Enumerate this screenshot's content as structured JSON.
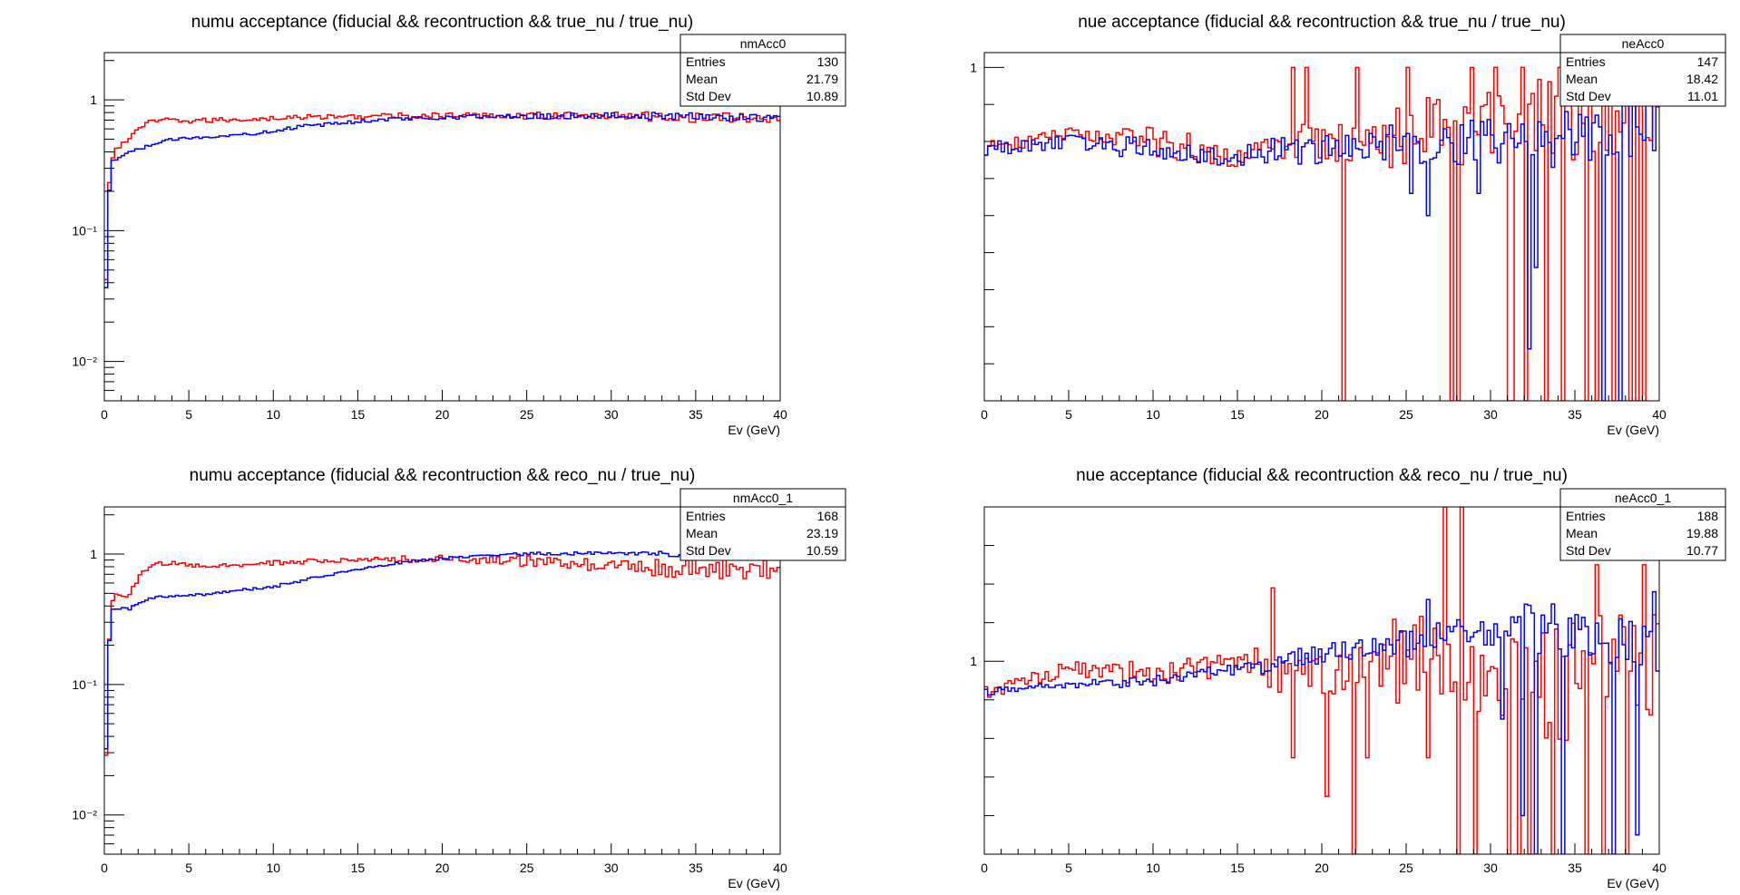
{
  "colors": {
    "series_a": "#ff0000",
    "series_b": "#0000ff",
    "frame": "#000000"
  },
  "chart_data": [
    {
      "type": "line",
      "title": "numu acceptance (fiducial && recontruction && true_nu / true_nu)",
      "xlabel": "Ev (GeV)",
      "ylabel": "",
      "xlim": [
        0,
        40
      ],
      "ylim": [
        0.005,
        2.3
      ],
      "log_y": true,
      "bins": 200,
      "xticks": [
        0,
        5,
        10,
        15,
        20,
        25,
        30,
        35,
        40
      ],
      "xtick_labels": [
        "0",
        "5",
        "10",
        "15",
        "20",
        "25",
        "30",
        "35",
        "40"
      ],
      "yticks": [
        0.01,
        0.1,
        1
      ],
      "ytick_labels": [
        "10⁻²",
        "10⁻¹",
        "1"
      ],
      "stats": {
        "name": "nmAcc0",
        "rows": [
          {
            "label": "Entries",
            "value": "130"
          },
          {
            "label": "Mean",
            "value": "21.79"
          },
          {
            "label": "Std Dev",
            "value": "10.89"
          }
        ]
      },
      "series": [
        {
          "color": "#ff0000",
          "knots": [
            [
              0,
              0.006
            ],
            [
              0.2,
              0.06
            ],
            [
              0.4,
              0.35
            ],
            [
              0.8,
              0.45
            ],
            [
              1.2,
              0.45
            ],
            [
              1.8,
              0.58
            ],
            [
              2.5,
              0.66
            ],
            [
              3.5,
              0.7
            ],
            [
              5,
              0.69
            ],
            [
              8,
              0.71
            ],
            [
              12,
              0.74
            ],
            [
              20,
              0.76
            ],
            [
              30,
              0.76
            ],
            [
              40,
              0.72
            ]
          ],
          "noise": [
            0.03,
            0.03,
            0.04,
            0.05,
            0.07
          ]
        },
        {
          "color": "#0000ff",
          "knots": [
            [
              0,
              0.006
            ],
            [
              0.2,
              0.06
            ],
            [
              0.4,
              0.33
            ],
            [
              1,
              0.37
            ],
            [
              2,
              0.42
            ],
            [
              4,
              0.5
            ],
            [
              8,
              0.54
            ],
            [
              12,
              0.63
            ],
            [
              16,
              0.7
            ],
            [
              20,
              0.74
            ],
            [
              30,
              0.76
            ],
            [
              40,
              0.73
            ]
          ],
          "noise": [
            0.01,
            0.02,
            0.03,
            0.04,
            0.05
          ]
        }
      ]
    },
    {
      "type": "line",
      "title": "nue acceptance (fiducial && recontruction && true_nu / true_nu)",
      "xlabel": "Ev (GeV)",
      "ylabel": "",
      "xlim": [
        0,
        40
      ],
      "ylim": [
        0.55,
        1.02
      ],
      "log_y": false,
      "bins": 200,
      "xticks": [
        0,
        5,
        10,
        15,
        20,
        25,
        30,
        35,
        40
      ],
      "xtick_labels": [
        "0",
        "5",
        "10",
        "15",
        "20",
        "25",
        "30",
        "35",
        "40"
      ],
      "yticks": [
        1
      ],
      "ytick_labels": [
        "1"
      ],
      "stats": {
        "name": "neAcc0",
        "rows": [
          {
            "label": "Entries",
            "value": "147"
          },
          {
            "label": "Mean",
            "value": "18.42"
          },
          {
            "label": "Std Dev",
            "value": "11.01"
          }
        ]
      },
      "series": [
        {
          "color": "#ff0000",
          "knots": [
            [
              0,
              0.89
            ],
            [
              5,
              0.91
            ],
            [
              10,
              0.9
            ],
            [
              15,
              0.88
            ],
            [
              20,
              0.9
            ],
            [
              30,
              0.92
            ],
            [
              40,
              0.95
            ]
          ],
          "noise": [
            0.01,
            0.02,
            0.03,
            0.05,
            0.06
          ],
          "spikes": [
            [
              21.4,
              0.55
            ],
            [
              27.7,
              0.55
            ],
            [
              28.0,
              0.55
            ],
            [
              31.0,
              0.55
            ],
            [
              31.4,
              0.55
            ],
            [
              32.0,
              0.55
            ],
            [
              33.2,
              0.55
            ],
            [
              34.4,
              0.55
            ],
            [
              35.8,
              0.55
            ],
            [
              36.2,
              0.55
            ],
            [
              37.4,
              0.55
            ],
            [
              38.2,
              0.55
            ],
            [
              38.6,
              0.55
            ],
            [
              39.0,
              0.55
            ],
            [
              18.4,
              1.0
            ],
            [
              19.2,
              1.0
            ],
            [
              22.0,
              1.0
            ],
            [
              25.2,
              1.0
            ],
            [
              28.8,
              1.0
            ],
            [
              30.2,
              1.0
            ],
            [
              31.8,
              1.0
            ],
            [
              34.0,
              1.0
            ],
            [
              35.2,
              1.0
            ],
            [
              36.6,
              1.0
            ],
            [
              39.8,
              1.0
            ]
          ]
        },
        {
          "color": "#0000ff",
          "knots": [
            [
              0,
              0.89
            ],
            [
              5,
              0.9
            ],
            [
              10,
              0.89
            ],
            [
              15,
              0.88
            ],
            [
              20,
              0.89
            ],
            [
              30,
              0.9
            ],
            [
              40,
              0.92
            ]
          ],
          "noise": [
            0.01,
            0.015,
            0.02,
            0.03,
            0.05
          ],
          "spikes": [
            [
              25.4,
              0.83
            ],
            [
              32.2,
              0.62
            ],
            [
              32.6,
              0.73
            ],
            [
              36.6,
              0.55
            ],
            [
              37.8,
              0.55
            ],
            [
              39.2,
              0.95
            ],
            [
              26.4,
              0.8
            ],
            [
              29.4,
              0.83
            ],
            [
              38.4,
              0.88
            ]
          ]
        }
      ]
    },
    {
      "type": "line",
      "title": "numu acceptance (fiducial && recontruction && reco_nu / true_nu)",
      "xlabel": "Ev (GeV)",
      "ylabel": "",
      "xlim": [
        0,
        40
      ],
      "ylim": [
        0.005,
        2.3
      ],
      "log_y": true,
      "bins": 200,
      "xticks": [
        0,
        5,
        10,
        15,
        20,
        25,
        30,
        35,
        40
      ],
      "xtick_labels": [
        "0",
        "5",
        "10",
        "15",
        "20",
        "25",
        "30",
        "35",
        "40"
      ],
      "yticks": [
        0.01,
        0.1,
        1
      ],
      "ytick_labels": [
        "10⁻²",
        "10⁻¹",
        "1"
      ],
      "stats": {
        "name": "nmAcc0_1",
        "rows": [
          {
            "label": "Entries",
            "value": "168"
          },
          {
            "label": "Mean",
            "value": "23.19"
          },
          {
            "label": "Std Dev",
            "value": "10.59"
          }
        ]
      },
      "series": [
        {
          "color": "#ff0000",
          "knots": [
            [
              0,
              0.006
            ],
            [
              0.2,
              0.06
            ],
            [
              0.4,
              0.4
            ],
            [
              0.8,
              0.52
            ],
            [
              1.4,
              0.45
            ],
            [
              2.2,
              0.7
            ],
            [
              3,
              0.84
            ],
            [
              4,
              0.85
            ],
            [
              6,
              0.8
            ],
            [
              10,
              0.86
            ],
            [
              15,
              0.9
            ],
            [
              20,
              0.92
            ],
            [
              25,
              0.88
            ],
            [
              30,
              0.82
            ],
            [
              35,
              0.78
            ],
            [
              40,
              0.75
            ]
          ],
          "noise": [
            0.03,
            0.04,
            0.06,
            0.09,
            0.14
          ]
        },
        {
          "color": "#0000ff",
          "knots": [
            [
              0,
              0.006
            ],
            [
              0.2,
              0.06
            ],
            [
              0.4,
              0.38
            ],
            [
              1.5,
              0.38
            ],
            [
              3,
              0.47
            ],
            [
              6,
              0.49
            ],
            [
              10,
              0.56
            ],
            [
              14,
              0.72
            ],
            [
              18,
              0.88
            ],
            [
              22,
              0.97
            ],
            [
              25,
              1.0
            ],
            [
              30,
              1.02
            ],
            [
              35,
              1.0
            ],
            [
              40,
              0.98
            ]
          ],
          "noise": [
            0.01,
            0.015,
            0.02,
            0.03,
            0.05
          ]
        }
      ]
    },
    {
      "type": "line",
      "title": "nue acceptance (fiducial && recontruction && reco_nu / true_nu)",
      "xlabel": "Ev (GeV)",
      "ylabel": "",
      "xlim": [
        0,
        40
      ],
      "ylim": [
        0.5,
        1.4
      ],
      "log_y": false,
      "bins": 200,
      "xticks": [
        0,
        5,
        10,
        15,
        20,
        25,
        30,
        35,
        40
      ],
      "xtick_labels": [
        "0",
        "5",
        "10",
        "15",
        "20",
        "25",
        "30",
        "35",
        "40"
      ],
      "yticks": [
        1
      ],
      "ytick_labels": [
        "1"
      ],
      "stats": {
        "name": "neAcc0_1",
        "rows": [
          {
            "label": "Entries",
            "value": "188"
          },
          {
            "label": "Mean",
            "value": "19.88"
          },
          {
            "label": "Std Dev",
            "value": "10.77"
          }
        ]
      },
      "series": [
        {
          "color": "#ff0000",
          "knots": [
            [
              0,
              0.92
            ],
            [
              5,
              0.98
            ],
            [
              10,
              0.97
            ],
            [
              15,
              0.99
            ],
            [
              20,
              0.97
            ],
            [
              25,
              1.0
            ],
            [
              30,
              0.98
            ],
            [
              35,
              0.95
            ],
            [
              40,
              1.0
            ]
          ],
          "noise": [
            0.02,
            0.03,
            0.06,
            0.12,
            0.16
          ],
          "spikes": [
            [
              18.4,
              0.75
            ],
            [
              20.4,
              0.65
            ],
            [
              21.8,
              0.5
            ],
            [
              22.6,
              0.75
            ],
            [
              26.2,
              0.75
            ],
            [
              27.2,
              1.4
            ],
            [
              28.0,
              0.5
            ],
            [
              28.4,
              1.4
            ],
            [
              29.0,
              0.5
            ],
            [
              31.0,
              0.5
            ],
            [
              31.6,
              0.5
            ],
            [
              32.4,
              0.5
            ],
            [
              33.8,
              0.5
            ],
            [
              35.6,
              0.5
            ],
            [
              36.8,
              0.5
            ],
            [
              38.0,
              0.5
            ],
            [
              39.0,
              1.25
            ],
            [
              36.2,
              1.25
            ],
            [
              17.0,
              1.19
            ]
          ]
        },
        {
          "color": "#0000ff",
          "knots": [
            [
              0,
              0.92
            ],
            [
              5,
              0.94
            ],
            [
              10,
              0.95
            ],
            [
              15,
              0.98
            ],
            [
              20,
              1.02
            ],
            [
              25,
              1.05
            ],
            [
              30,
              1.08
            ],
            [
              35,
              1.08
            ],
            [
              40,
              1.02
            ]
          ],
          "noise": [
            0.01,
            0.015,
            0.025,
            0.04,
            0.07
          ],
          "spikes": [
            [
              26.2,
              1.16
            ],
            [
              31.8,
              0.6
            ],
            [
              32.6,
              0.5
            ],
            [
              34.2,
              0.5
            ],
            [
              37.2,
              0.5
            ],
            [
              38.6,
              0.55
            ],
            [
              39.6,
              1.18
            ],
            [
              30.6,
              0.85
            ]
          ]
        }
      ]
    }
  ]
}
